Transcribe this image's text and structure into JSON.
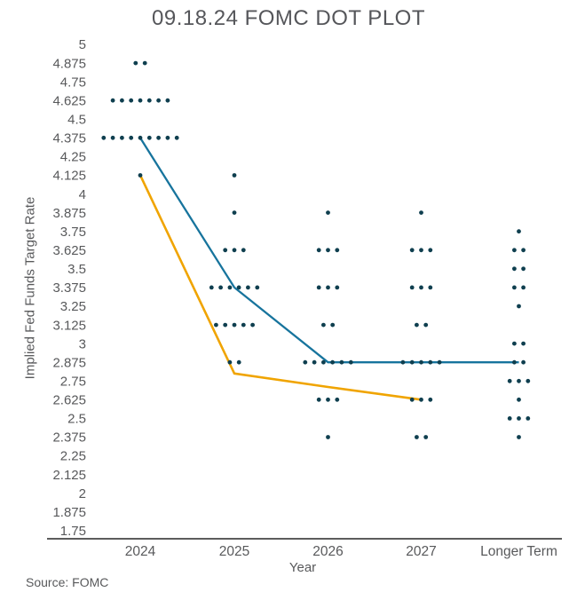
{
  "title": "09.18.24 FOMC DOT PLOT",
  "source": "Source: FOMC",
  "colors": {
    "dot": "#0f3f4f",
    "blue_line": "#17749d",
    "yellow_line": "#f0a400",
    "text": "#58595b",
    "axis_line": "#262626"
  },
  "chart_data": {
    "type": "scatter",
    "title": "09.18.24 FOMC DOT PLOT",
    "xlabel": "Year",
    "ylabel": "Implied Fed Funds Target Rate",
    "categories": [
      "2024",
      "2025",
      "2026",
      "2027",
      "Longer Term"
    ],
    "ylim": [
      1.75,
      5
    ],
    "y_tick_step": 0.125,
    "y_tick_labels": [
      "5",
      "4.875",
      "4.75",
      "4.625",
      "4.5",
      "4.375",
      "4.25",
      "4.125",
      "4",
      "3.875",
      "3.75",
      "3.625",
      "3.5",
      "3.375",
      "3.25",
      "3.125",
      "3",
      "2.875",
      "2.75",
      "2.625",
      "2.5",
      "2.375",
      "2.25",
      "2.125",
      "2",
      "1.875",
      "1.75"
    ],
    "grid": false,
    "legend": false,
    "dot_columns": [
      {
        "category": "2024",
        "dots": [
          {
            "rate": 4.875,
            "count": 2
          },
          {
            "rate": 4.625,
            "count": 7
          },
          {
            "rate": 4.375,
            "count": 9
          },
          {
            "rate": 4.125,
            "count": 1
          }
        ]
      },
      {
        "category": "2025",
        "dots": [
          {
            "rate": 4.125,
            "count": 1
          },
          {
            "rate": 3.875,
            "count": 1
          },
          {
            "rate": 3.625,
            "count": 3
          },
          {
            "rate": 3.375,
            "count": 6
          },
          {
            "rate": 3.125,
            "count": 5
          },
          {
            "rate": 2.875,
            "count": 2
          }
        ]
      },
      {
        "category": "2026",
        "dots": [
          {
            "rate": 3.875,
            "count": 1
          },
          {
            "rate": 3.625,
            "count": 3
          },
          {
            "rate": 3.375,
            "count": 3
          },
          {
            "rate": 3.125,
            "count": 2
          },
          {
            "rate": 2.875,
            "count": 6
          },
          {
            "rate": 2.625,
            "count": 3
          },
          {
            "rate": 2.375,
            "count": 1
          }
        ]
      },
      {
        "category": "2027",
        "dots": [
          {
            "rate": 3.875,
            "count": 1
          },
          {
            "rate": 3.625,
            "count": 3
          },
          {
            "rate": 3.375,
            "count": 3
          },
          {
            "rate": 3.125,
            "count": 2
          },
          {
            "rate": 2.875,
            "count": 5
          },
          {
            "rate": 2.625,
            "count": 3
          },
          {
            "rate": 2.375,
            "count": 2
          }
        ]
      },
      {
        "category": "Longer Term",
        "dots": [
          {
            "rate": 3.75,
            "count": 1
          },
          {
            "rate": 3.625,
            "count": 2
          },
          {
            "rate": 3.5,
            "count": 2
          },
          {
            "rate": 3.375,
            "count": 2
          },
          {
            "rate": 3.25,
            "count": 1
          },
          {
            "rate": 3,
            "count": 2
          },
          {
            "rate": 2.875,
            "count": 2
          },
          {
            "rate": 2.75,
            "count": 3
          },
          {
            "rate": 2.625,
            "count": 1
          },
          {
            "rate": 2.5,
            "count": 3
          },
          {
            "rate": 2.375,
            "count": 1
          }
        ]
      }
    ],
    "lines": [
      {
        "id": "blue-line",
        "color": "#17749d",
        "points": [
          {
            "category": "2024",
            "rate": 4.375
          },
          {
            "category": "2025",
            "rate": 3.375
          },
          {
            "category": "2026",
            "rate": 2.875
          },
          {
            "category": "2027",
            "rate": 2.875
          },
          {
            "category": "Longer Term",
            "rate": 2.875
          }
        ]
      },
      {
        "id": "yellow-line",
        "color": "#f0a400",
        "points": [
          {
            "category": "2024",
            "rate": 4.125
          },
          {
            "category": "2025",
            "rate": 2.8
          },
          {
            "category": "2026",
            "rate": 2.71
          },
          {
            "category": "2027",
            "rate": 2.625
          }
        ]
      }
    ]
  }
}
